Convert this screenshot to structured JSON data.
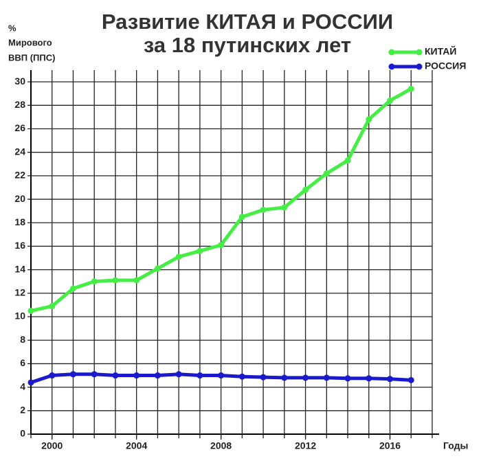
{
  "chart_data": {
    "type": "line",
    "title": "Развитие КИТАЯ и РОССИИ",
    "subtitle": "за 18 путинских лет",
    "ylabel": [
      "%",
      "Мирового",
      "ВВП (ППС)"
    ],
    "xlabel": "Годы",
    "x": [
      1999,
      2000,
      2001,
      2002,
      2003,
      2004,
      2005,
      2006,
      2007,
      2008,
      2009,
      2010,
      2011,
      2012,
      2013,
      2014,
      2015,
      2016,
      2017
    ],
    "series": [
      {
        "name": "КИТАЙ",
        "color": "#44ee44",
        "values": [
          10.5,
          10.9,
          12.4,
          13.0,
          13.1,
          13.1,
          14.1,
          15.1,
          15.6,
          16.1,
          18.5,
          19.1,
          19.3,
          20.8,
          22.2,
          23.3,
          26.8,
          28.4,
          29.4
        ]
      },
      {
        "name": "РОССИЯ",
        "color": "#1a1acc",
        "values": [
          4.4,
          5.0,
          5.1,
          5.1,
          5.0,
          5.0,
          5.0,
          5.1,
          5.0,
          5.0,
          4.9,
          4.85,
          4.8,
          4.8,
          4.8,
          4.75,
          4.75,
          4.7,
          4.6
        ]
      }
    ],
    "xlim": [
      1999,
      2018
    ],
    "xticks": [
      2000,
      2004,
      2008,
      2012,
      2016
    ],
    "xgrid": [
      1999,
      2000,
      2001,
      2002,
      2003,
      2004,
      2005,
      2006,
      2007,
      2008,
      2009,
      2010,
      2011,
      2012,
      2013,
      2014,
      2015,
      2016,
      2017,
      2018
    ],
    "ylim": [
      0,
      31
    ],
    "yticks": [
      0,
      2,
      4,
      6,
      8,
      10,
      12,
      14,
      16,
      18,
      20,
      22,
      24,
      26,
      28,
      30
    ],
    "grid": true,
    "legend": "top-right"
  }
}
